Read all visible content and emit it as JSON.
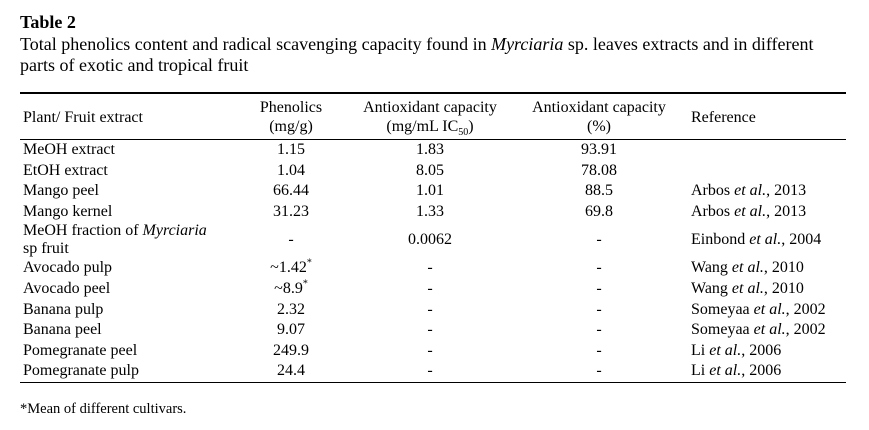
{
  "table_label": "Table 2",
  "caption_part1": "Total phenolics content and radical scavenging capacity found in ",
  "caption_italic": "Myrciaria",
  "caption_part2": " sp. leaves extracts and in different parts of exotic and tropical fruit",
  "headers": {
    "col1": "Plant/ Fruit extract",
    "col2_line1": "Phenolics",
    "col2_line2": "(mg/g)",
    "col3_line1": "Antioxidant capacity",
    "col3_line2_pre": "(mg/mL IC",
    "col3_line2_sub": "50",
    "col3_line2_post": ")",
    "col4_line1": "Antioxidant capacity",
    "col4_line2": "(%)",
    "col5": "Reference"
  },
  "rows": [
    {
      "name": "MeOH extract",
      "phenolics": "1.15",
      "ic50": "1.83",
      "pct": "93.91",
      "ref_author": "",
      "ref_etal": "",
      "ref_year": ""
    },
    {
      "name": "EtOH extract",
      "phenolics": "1.04",
      "ic50": "8.05",
      "pct": "78.08",
      "ref_author": "",
      "ref_etal": "",
      "ref_year": ""
    },
    {
      "name": "Mango peel",
      "phenolics": "66.44",
      "ic50": "1.01",
      "pct": "88.5",
      "ref_author": "Arbos ",
      "ref_etal": "et al.",
      "ref_year": ", 2013"
    },
    {
      "name": "Mango kernel",
      "phenolics": "31.23",
      "ic50": "1.33",
      "pct": "69.8",
      "ref_author": "Arbos ",
      "ref_etal": "et al.",
      "ref_year": ", 2013"
    },
    {
      "name_line1_pre": "MeOH fraction of ",
      "name_line1_italic": "Myrciaria",
      "name_line2": "sp fruit",
      "phenolics": "-",
      "ic50": "0.0062",
      "pct": "-",
      "ref_author": "Einbond ",
      "ref_etal": "et al.",
      "ref_year": ", 2004"
    },
    {
      "name": "Avocado pulp",
      "phenolics": "~1.42",
      "phen_sup": "*",
      "ic50": "-",
      "pct": "-",
      "ref_author": "Wang ",
      "ref_etal": "et al.",
      "ref_year": ", 2010"
    },
    {
      "name": "Avocado peel",
      "phenolics": "~8.9",
      "phen_sup": "*",
      "ic50": "-",
      "pct": "-",
      "ref_author": "Wang ",
      "ref_etal": "et al.",
      "ref_year": ", 2010"
    },
    {
      "name": "Banana pulp",
      "phenolics": "2.32",
      "ic50": "-",
      "pct": "-",
      "ref_author": "Someyaa ",
      "ref_etal": "et al.",
      "ref_year": ", 2002"
    },
    {
      "name": "Banana peel",
      "phenolics": "9.07",
      "ic50": "-",
      "pct": "-",
      "ref_author": "Someyaa ",
      "ref_etal": "et al.",
      "ref_year": ", 2002"
    },
    {
      "name": "Pomegranate peel",
      "phenolics": "249.9",
      "ic50": "-",
      "pct": "-",
      "ref_author": "Li ",
      "ref_etal": "et al.",
      "ref_year": ", 2006"
    },
    {
      "name": "Pomegranate pulp",
      "phenolics": "24.4",
      "ic50": "-",
      "pct": "-",
      "ref_author": "Li ",
      "ref_etal": "et al.",
      "ref_year": ", 2006"
    }
  ],
  "footnote": "*Mean of different cultivars."
}
